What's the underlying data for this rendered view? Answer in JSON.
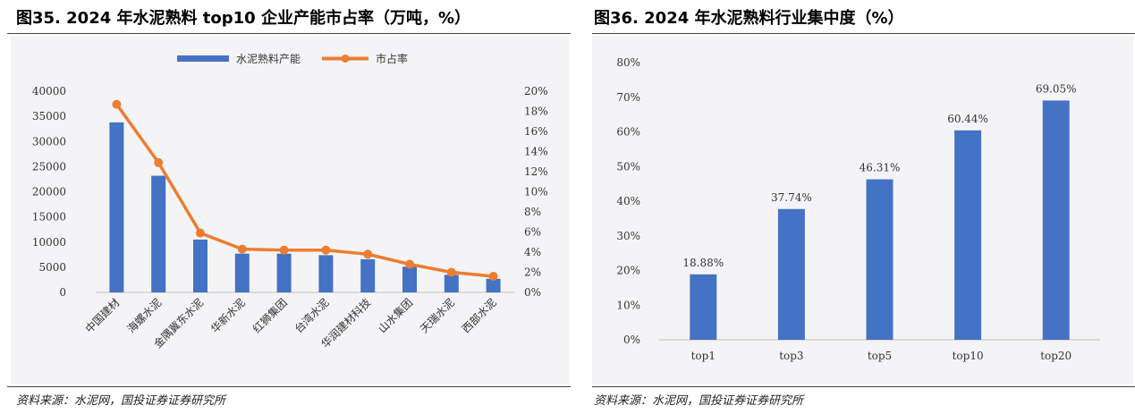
{
  "left": {
    "figure_title": "图35. 2024 年水泥熟料 top10 企业产能市占率（万吨，%）",
    "source": "资料来源：水泥网，国投证券证券研究所"
  },
  "right": {
    "figure_title": "图36. 2024 年水泥熟料行业集中度（%）",
    "source": "资料来源：水泥网，国投证券证券研究所"
  },
  "chart_data": [
    {
      "type": "bar",
      "title": "图35. 2024 年水泥熟料 top10 企业产能市占率（万吨，%）",
      "categories": [
        "中国建材",
        "海螺水泥",
        "金隅冀东水泥",
        "华新水泥",
        "红狮集团",
        "台湾水泥",
        "华润建材科技",
        "山水集团",
        "天瑞水泥",
        "西部水泥"
      ],
      "series": [
        {
          "name": "水泥熟料产能",
          "type": "bar",
          "axis": "left",
          "color": "#4472c4",
          "values": [
            33800,
            23200,
            10500,
            7700,
            7700,
            7400,
            6600,
            5100,
            3500,
            2700
          ]
        },
        {
          "name": "市占率",
          "type": "line",
          "axis": "right",
          "color": "#ed7d31",
          "values": [
            18.7,
            12.9,
            5.9,
            4.3,
            4.2,
            4.2,
            3.8,
            2.8,
            2.0,
            1.6
          ]
        }
      ],
      "ylim_left": [
        0,
        40000
      ],
      "yticks_left": [
        "0",
        "5000",
        "10000",
        "15000",
        "20000",
        "25000",
        "30000",
        "35000",
        "40000"
      ],
      "ylim_right": [
        0,
        20
      ],
      "yticks_right": [
        "0%",
        "2%",
        "4%",
        "6%",
        "8%",
        "10%",
        "12%",
        "14%",
        "16%",
        "18%",
        "20%"
      ],
      "legend": "top-center",
      "grid": false
    },
    {
      "type": "bar",
      "title": "图36. 2024 年水泥熟料行业集中度（%）",
      "categories": [
        "top1",
        "top3",
        "top5",
        "top10",
        "top20"
      ],
      "values": [
        18.88,
        37.74,
        46.31,
        60.44,
        69.05
      ],
      "data_labels": [
        "18.88%",
        "37.74%",
        "46.31%",
        "60.44%",
        "69.05%"
      ],
      "color": "#4472c4",
      "ylim": [
        0,
        80
      ],
      "yticks": [
        "0%",
        "10%",
        "20%",
        "30%",
        "40%",
        "50%",
        "60%",
        "70%",
        "80%"
      ],
      "grid": false
    }
  ]
}
